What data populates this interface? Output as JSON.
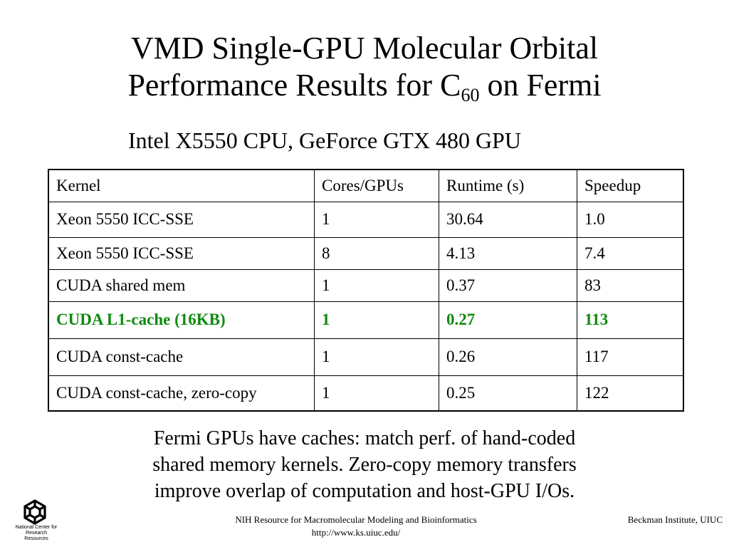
{
  "slide": {
    "title_line1": "VMD Single-GPU Molecular Orbital",
    "title_line2_prefix": "Performance Results for C",
    "title_subscript": "60",
    "title_line2_suffix": " on Fermi",
    "subtitle": "Intel X5550 CPU, GeForce GTX 480 GPU",
    "highlight_color": "#108a10"
  },
  "table": {
    "headers": [
      "Kernel",
      "Cores/GPUs",
      "Runtime (s)",
      "Speedup"
    ],
    "rows": [
      [
        "Xeon 5550 ICC-SSE",
        "1",
        "30.64",
        "1.0"
      ],
      [
        "Xeon 5550 ICC-SSE",
        "8",
        "4.13",
        "7.4"
      ],
      [
        "CUDA shared mem",
        "1",
        "0.37",
        "83"
      ],
      [
        "CUDA L1-cache (16KB)",
        "1",
        "0.27",
        "113"
      ],
      [
        "CUDA const-cache",
        "1",
        "0.26",
        "117"
      ],
      [
        "CUDA const-cache, zero-copy",
        "1",
        "0.25",
        "122"
      ]
    ]
  },
  "caption": {
    "line1": "Fermi GPUs have caches: match perf. of hand-coded",
    "line2": "shared memory kernels. Zero-copy memory transfers",
    "line3": "improve overlap of computation and host-GPU I/Os."
  },
  "footer": {
    "logo_icon": "ncsa-logo-icon",
    "logo_text_line1": "National Center for",
    "logo_text_line2": "Research Resources",
    "center_line1": "NIH Resource for Macromolecular Modeling and Bioinformatics",
    "center_line2": "http://www.ks.uiuc.edu/",
    "right": "Beckman Institute, UIUC"
  }
}
